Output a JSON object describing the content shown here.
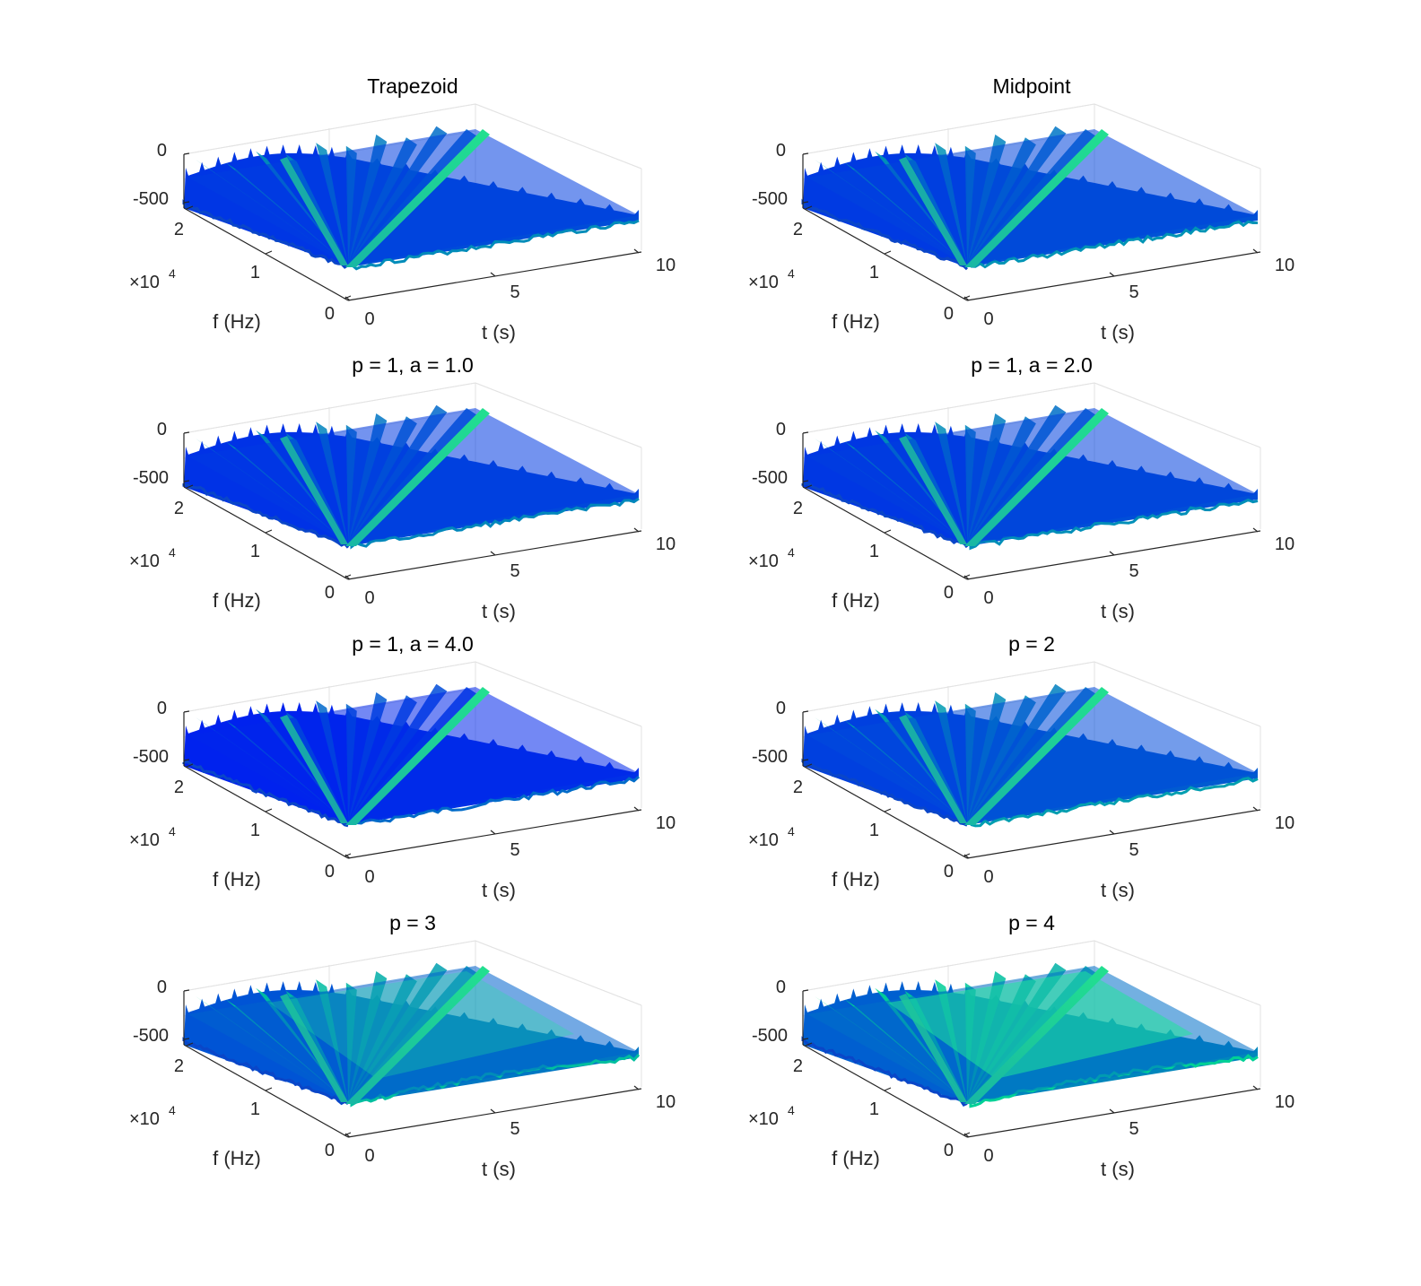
{
  "figure": {
    "title": ""
  },
  "chart_data": [
    {
      "type": "surface",
      "title": "Trapezoid",
      "xlabel": "t (s)",
      "ylabel": "f (Hz)",
      "xlim": [
        0,
        10
      ],
      "ylim": [
        0,
        22050
      ],
      "zlim": [
        -500,
        0
      ],
      "xticks": [
        "0",
        "5",
        "10"
      ],
      "yticks": [
        "0",
        "1",
        "2"
      ],
      "zticks": [
        "-500",
        "0"
      ],
      "y_exponent": "×10",
      "y_exponent_power": "4",
      "grid": true,
      "colormap": "winter",
      "variant": 0
    },
    {
      "type": "surface",
      "title": "Midpoint",
      "xlabel": "t (s)",
      "ylabel": "f (Hz)",
      "xlim": [
        0,
        10
      ],
      "ylim": [
        0,
        22050
      ],
      "zlim": [
        -500,
        0
      ],
      "xticks": [
        "0",
        "5",
        "10"
      ],
      "yticks": [
        "0",
        "1",
        "2"
      ],
      "zticks": [
        "-500",
        "0"
      ],
      "y_exponent": "×10",
      "y_exponent_power": "4",
      "grid": true,
      "colormap": "winter",
      "variant": 1
    },
    {
      "type": "surface",
      "title": "p = 1, a = 1.0",
      "xlabel": "t (s)",
      "ylabel": "f (Hz)",
      "xlim": [
        0,
        10
      ],
      "ylim": [
        0,
        22050
      ],
      "zlim": [
        -500,
        0
      ],
      "xticks": [
        "0",
        "5",
        "10"
      ],
      "yticks": [
        "0",
        "1",
        "2"
      ],
      "zticks": [
        "-500",
        "0"
      ],
      "y_exponent": "×10",
      "y_exponent_power": "4",
      "grid": true,
      "colormap": "winter",
      "variant": 2
    },
    {
      "type": "surface",
      "title": "p = 1, a = 2.0",
      "xlabel": "t (s)",
      "ylabel": "f (Hz)",
      "xlim": [
        0,
        10
      ],
      "ylim": [
        0,
        22050
      ],
      "zlim": [
        -500,
        0
      ],
      "xticks": [
        "0",
        "5",
        "10"
      ],
      "yticks": [
        "0",
        "1",
        "2"
      ],
      "zticks": [
        "-500",
        "0"
      ],
      "y_exponent": "×10",
      "y_exponent_power": "4",
      "grid": true,
      "colormap": "winter",
      "variant": 3
    },
    {
      "type": "surface",
      "title": "p = 1, a = 4.0",
      "xlabel": "t (s)",
      "ylabel": "f (Hz)",
      "xlim": [
        0,
        10
      ],
      "ylim": [
        0,
        22050
      ],
      "zlim": [
        -500,
        0
      ],
      "xticks": [
        "0",
        "5",
        "10"
      ],
      "yticks": [
        "0",
        "1",
        "2"
      ],
      "zticks": [
        "-500",
        "0"
      ],
      "y_exponent": "×10",
      "y_exponent_power": "4",
      "grid": true,
      "colormap": "winter",
      "variant": 4
    },
    {
      "type": "surface",
      "title": "p = 2",
      "xlabel": "t (s)",
      "ylabel": "f (Hz)",
      "xlim": [
        0,
        10
      ],
      "ylim": [
        0,
        22050
      ],
      "zlim": [
        -500,
        0
      ],
      "xticks": [
        "0",
        "5",
        "10"
      ],
      "yticks": [
        "0",
        "1",
        "2"
      ],
      "zticks": [
        "-500",
        "0"
      ],
      "y_exponent": "×10",
      "y_exponent_power": "4",
      "grid": true,
      "colormap": "winter",
      "variant": 5
    },
    {
      "type": "surface",
      "title": "p = 3",
      "xlabel": "t (s)",
      "ylabel": "f (Hz)",
      "xlim": [
        0,
        10
      ],
      "ylim": [
        0,
        22050
      ],
      "zlim": [
        -500,
        0
      ],
      "xticks": [
        "0",
        "5",
        "10"
      ],
      "yticks": [
        "0",
        "1",
        "2"
      ],
      "zticks": [
        "-500",
        "0"
      ],
      "y_exponent": "×10",
      "y_exponent_power": "4",
      "grid": true,
      "colormap": "winter",
      "variant": 6
    },
    {
      "type": "surface",
      "title": "p = 4",
      "xlabel": "t (s)",
      "ylabel": "f (Hz)",
      "xlim": [
        0,
        10
      ],
      "ylim": [
        0,
        22050
      ],
      "zlim": [
        -500,
        0
      ],
      "xticks": [
        "0",
        "5",
        "10"
      ],
      "yticks": [
        "0",
        "1",
        "2"
      ],
      "zticks": [
        "-500",
        "0"
      ],
      "y_exponent": "×10",
      "y_exponent_power": "4",
      "grid": true,
      "colormap": "winter",
      "variant": 7
    }
  ]
}
